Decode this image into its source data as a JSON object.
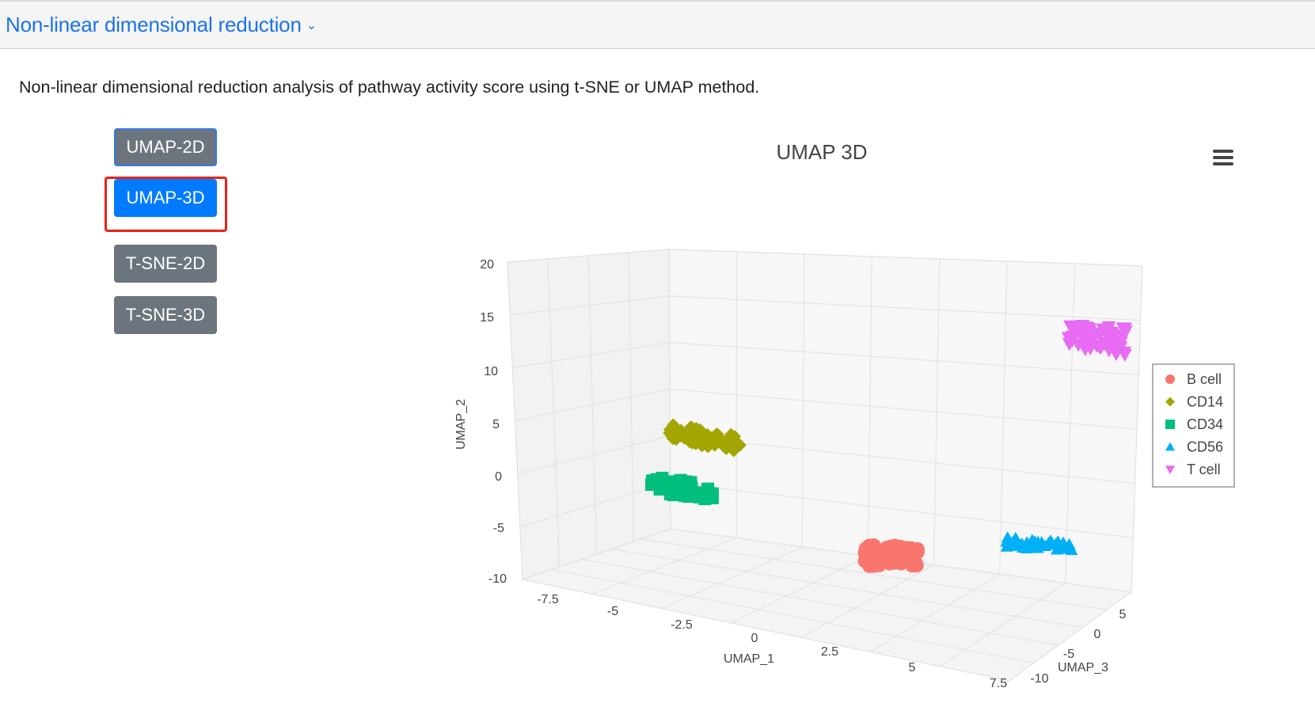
{
  "header": {
    "section_title": "Non-linear dimensional reduction",
    "chevron": "⌄"
  },
  "description": "Non-linear dimensional reduction analysis of pathway activity score using t-SNE or UMAP method.",
  "buttons": [
    {
      "label": "UMAP-2D",
      "state": "outlined"
    },
    {
      "label": "UMAP-3D",
      "state": "active",
      "highlighted": true
    },
    {
      "label": "T-SNE-2D",
      "state": "default"
    },
    {
      "label": "T-SNE-3D",
      "state": "default"
    }
  ],
  "chart": {
    "menu_icon": "hamburger-menu-icon",
    "chart_data": {
      "type": "scatter",
      "title": "UMAP 3D",
      "xlabel": "UMAP_1",
      "ylabel": "UMAP_2",
      "zlabel": "UMAP_3",
      "x_ticks": [
        "-7.5",
        "-5",
        "-2.5",
        "0",
        "2.5",
        "5",
        "7.5"
      ],
      "y_ticks": [
        "20",
        "15",
        "10",
        "5",
        "0",
        "-5",
        "-10"
      ],
      "z_ticks": [
        "5",
        "0",
        "-5",
        "-10"
      ],
      "ylim": [
        -10,
        20
      ],
      "grid": true,
      "legend_position": "right",
      "series": [
        {
          "name": "B cell",
          "color": "#f8766d",
          "marker": "circle",
          "center": [
            3.5,
            -7.5,
            2
          ]
        },
        {
          "name": "CD14",
          "color": "#a3a500",
          "marker": "diamond",
          "center": [
            -7.0,
            4.5,
            -3
          ]
        },
        {
          "name": "CD34",
          "color": "#00bf7d",
          "marker": "square",
          "center": [
            -7.0,
            -0.5,
            -2
          ]
        },
        {
          "name": "CD56",
          "color": "#00b0f6",
          "marker": "triangle-up",
          "center": [
            7.0,
            -7.5,
            -1
          ]
        },
        {
          "name": "T cell",
          "color": "#e76bf3",
          "marker": "triangle-down",
          "center": [
            6.5,
            14.0,
            3
          ]
        }
      ]
    }
  }
}
